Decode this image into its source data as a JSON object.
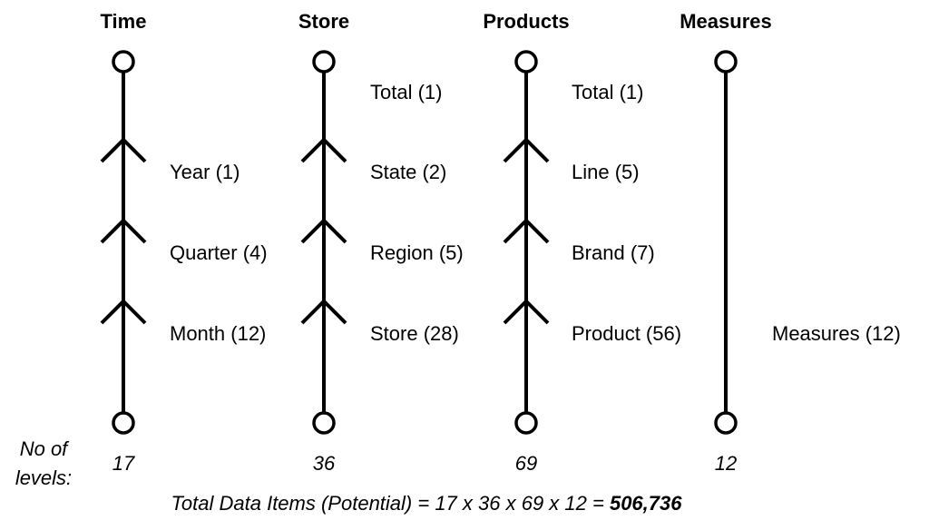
{
  "dimensions": [
    {
      "title": "Time",
      "levels": [
        "Year (1)",
        "Quarter (4)",
        "Month (12)"
      ],
      "level_count": "17",
      "top_total": ""
    },
    {
      "title": "Store",
      "levels": [
        "State (2)",
        "Region (5)",
        "Store (28)"
      ],
      "level_count": "36",
      "top_total": "Total (1)"
    },
    {
      "title": "Products",
      "levels": [
        "Line (5)",
        "Brand (7)",
        "Product (56)"
      ],
      "level_count": "69",
      "top_total": "Total (1)"
    },
    {
      "title": "Measures",
      "levels": [],
      "level_count": "12",
      "measure_label": "Measures (12)"
    }
  ],
  "levels_label": {
    "line1": "No of",
    "line2": "levels:"
  },
  "total": {
    "prefix": "Total Data Items (Potential) = 17 x 36 x 69 x 12 = ",
    "value": "506,736"
  }
}
